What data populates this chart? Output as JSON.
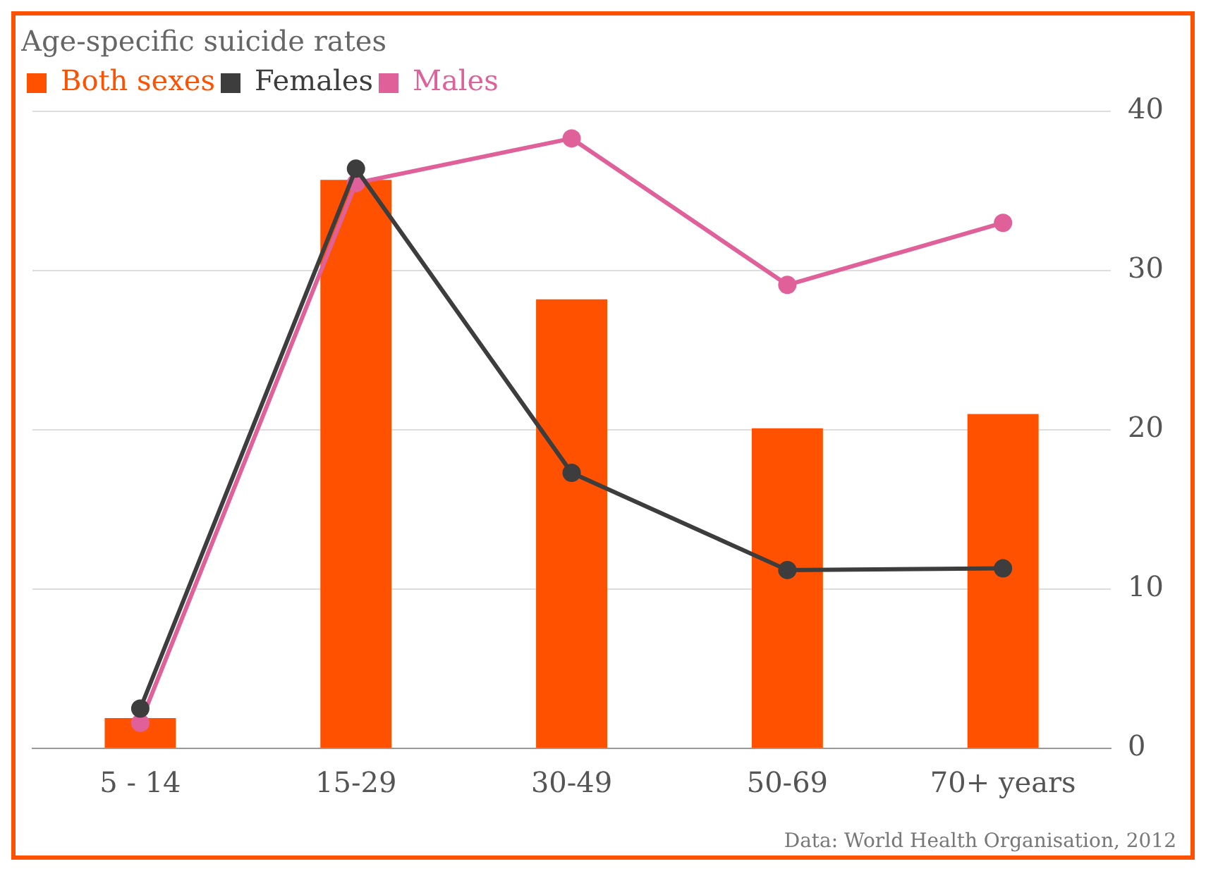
{
  "chart_data": {
    "type": "bar",
    "title": "Age-specific suicide rates",
    "categories": [
      "5 - 14",
      "15-29",
      "30-49",
      "50-69",
      "70+ years"
    ],
    "series": [
      {
        "name": "Both sexes",
        "color": "#ff5100",
        "values": [
          1.9,
          35.7,
          28.2,
          20.1,
          21.0
        ]
      },
      {
        "name": "Females",
        "type": "line",
        "color": "#3d3d3d",
        "values": [
          2.5,
          36.4,
          17.3,
          11.2,
          11.3
        ]
      },
      {
        "name": "Males",
        "type": "line",
        "color": "#e0609a",
        "values": [
          1.6,
          35.5,
          38.3,
          29.1,
          33.0
        ]
      }
    ],
    "ylim": [
      0,
      40
    ],
    "yticks": [
      0,
      10,
      20,
      30,
      40
    ],
    "grid": "y",
    "legend": "top left",
    "marker": "circle",
    "annotations": [
      "Data: World Health Organisation, 2012"
    ]
  }
}
